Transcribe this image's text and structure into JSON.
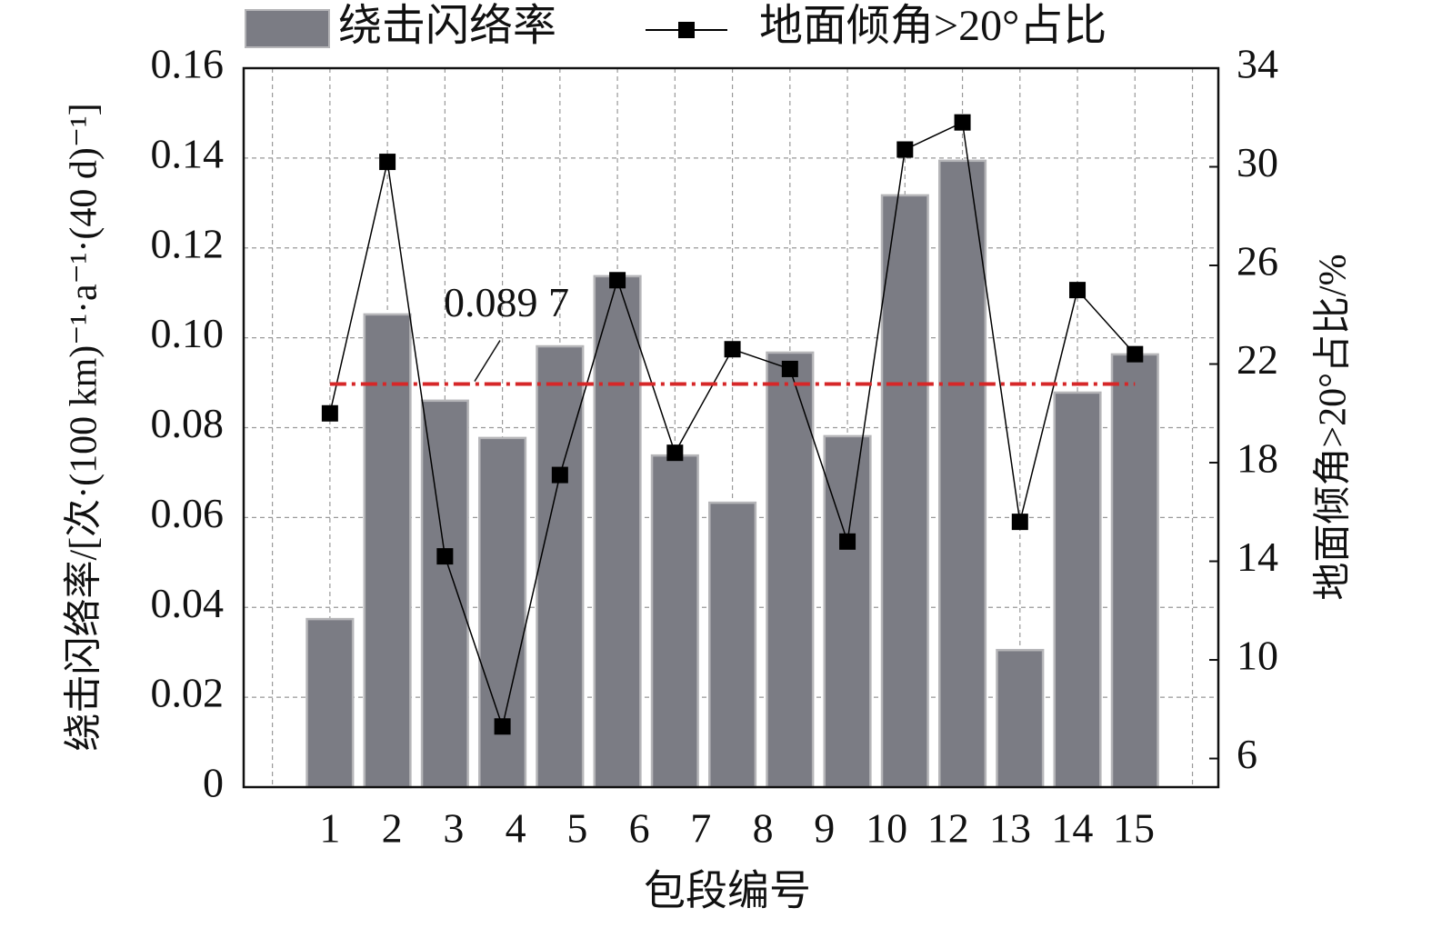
{
  "chart_data": {
    "type": "bar-line",
    "x": [
      1,
      2,
      3,
      4,
      5,
      6,
      7,
      8,
      9,
      10,
      11,
      12,
      13,
      14,
      15
    ],
    "xlim": [
      -0.5,
      16.45
    ],
    "xticks": [
      {
        "value": 1,
        "label": "1"
      },
      {
        "value": 2.08,
        "label": "2"
      },
      {
        "value": 3.15,
        "label": "3"
      },
      {
        "value": 4.23,
        "label": "4"
      },
      {
        "value": 5.3,
        "label": "5"
      },
      {
        "value": 6.38,
        "label": "6"
      },
      {
        "value": 7.45,
        "label": "7"
      },
      {
        "value": 8.53,
        "label": "8"
      },
      {
        "value": 9.6,
        "label": "9"
      },
      {
        "value": 10.68,
        "label": "10"
      },
      {
        "value": 11.75,
        "label": "12"
      },
      {
        "value": 12.83,
        "label": "13"
      },
      {
        "value": 13.91,
        "label": "14"
      },
      {
        "value": 14.98,
        "label": "15"
      }
    ],
    "xlabel": "包段编号",
    "ylabel": "绕击闪络率/[次·(100 km)⁻¹·a⁻¹·(40 d)⁻¹]",
    "y2label": "地面倾角>20°占比/%",
    "ylim": [
      0,
      0.16
    ],
    "yticks": [
      0,
      0.02,
      0.04,
      0.06,
      0.08,
      {
        "value": 0.1,
        "label": "0.10"
      },
      0.12,
      0.14,
      0.16
    ],
    "y2lim": [
      4.84,
      34
    ],
    "y2ticks": [
      6,
      10,
      14,
      18,
      22,
      26,
      30,
      34
    ],
    "grid": true,
    "legend": "top",
    "series": [
      {
        "name": "绕击闪络率",
        "type": "bar",
        "color": "#7b7c84",
        "values": [
          0.0374,
          0.1052,
          0.086,
          0.0777,
          0.0981,
          0.1137,
          0.0738,
          0.0633,
          0.0967,
          0.0781,
          0.1317,
          0.1394,
          0.0305,
          0.0878,
          0.0963
        ]
      },
      {
        "name": "地面倾角>20°占比",
        "type": "line",
        "axis": "y2",
        "color": "#000000",
        "values": [
          20.0,
          30.2,
          14.2,
          7.3,
          17.5,
          25.4,
          18.4,
          22.6,
          21.8,
          14.8,
          30.7,
          31.8,
          15.6,
          25.0,
          22.4
        ]
      }
    ],
    "reference_line": {
      "value": 0.0897,
      "label": "0.089 7",
      "color": "#d62728"
    }
  }
}
